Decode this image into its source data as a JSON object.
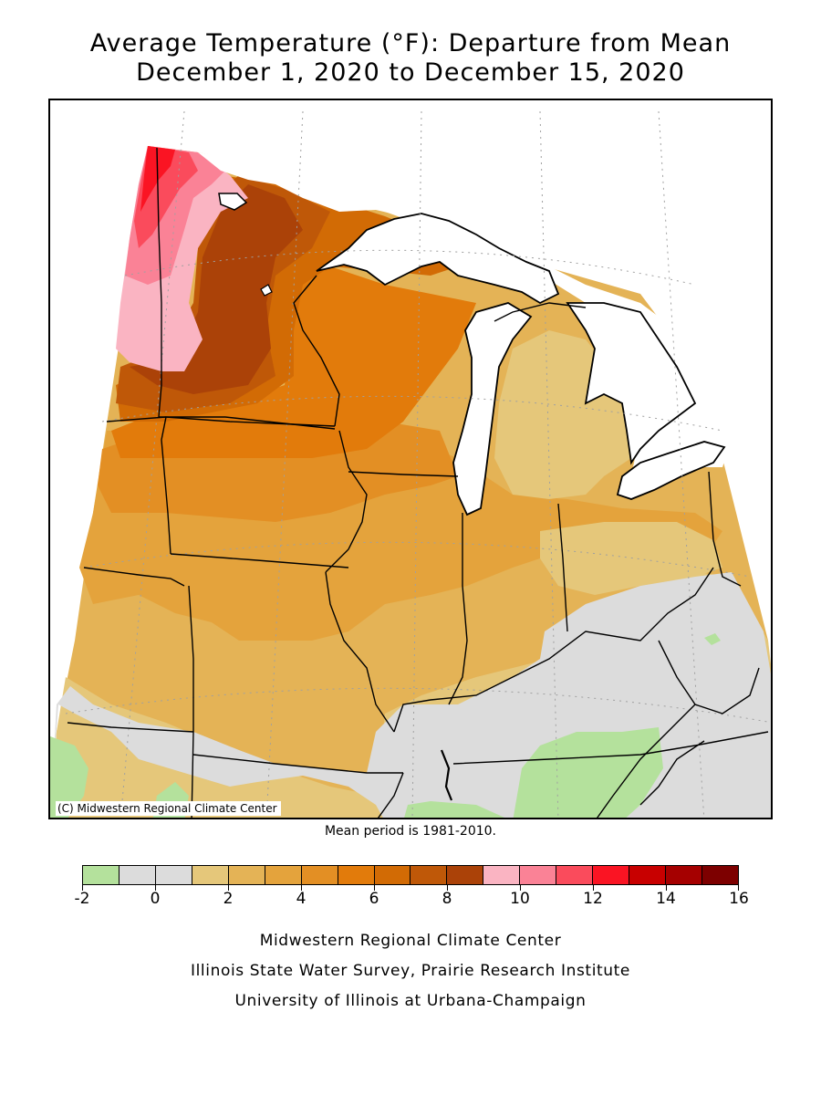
{
  "title": {
    "line1": "Average Temperature (°F): Departure from Mean",
    "line2": "December 1, 2020 to December 15, 2020"
  },
  "map": {
    "copyright": "(C) Midwestern Regional Climate Center",
    "region": "Upper Midwest and Great Lakes",
    "colors": {
      "lake": "#ffffff",
      "border": "#000000",
      "grid": "#a0a0a0"
    }
  },
  "mean_note": "Mean period is 1981-2010.",
  "legend": {
    "tick_labels": [
      "-2",
      "0",
      "2",
      "4",
      "6",
      "8",
      "10",
      "12",
      "14",
      "16"
    ],
    "bins": [
      {
        "min": -2,
        "max": -1,
        "color": "#b4e19c"
      },
      {
        "min": -1,
        "max": 0,
        "color": "#dcdcdc"
      },
      {
        "min": 0,
        "max": 1,
        "color": "#dcdcdc"
      },
      {
        "min": 1,
        "max": 2,
        "color": "#e5c77a"
      },
      {
        "min": 2,
        "max": 3,
        "color": "#e4b356"
      },
      {
        "min": 3,
        "max": 4,
        "color": "#e4a33c"
      },
      {
        "min": 4,
        "max": 5,
        "color": "#e38f24"
      },
      {
        "min": 5,
        "max": 6,
        "color": "#e27b0b"
      },
      {
        "min": 6,
        "max": 7,
        "color": "#d26b05"
      },
      {
        "min": 7,
        "max": 8,
        "color": "#bf5808"
      },
      {
        "min": 8,
        "max": 9,
        "color": "#ab4208"
      },
      {
        "min": 9,
        "max": 10,
        "color": "#fab4c2"
      },
      {
        "min": 10,
        "max": 11,
        "color": "#fa8296"
      },
      {
        "min": 11,
        "max": 12,
        "color": "#fa4b5c"
      },
      {
        "min": 12,
        "max": 13,
        "color": "#fa1423"
      },
      {
        "min": 13,
        "max": 14,
        "color": "#c80000"
      },
      {
        "min": 14,
        "max": 15,
        "color": "#a50000"
      },
      {
        "min": 15,
        "max": 16,
        "color": "#7d0000"
      }
    ]
  },
  "credits": {
    "line1": "Midwestern Regional Climate Center",
    "line2": "Illinois State Water Survey, Prairie Research Institute",
    "line3": "University of Illinois at Urbana-Champaign"
  }
}
